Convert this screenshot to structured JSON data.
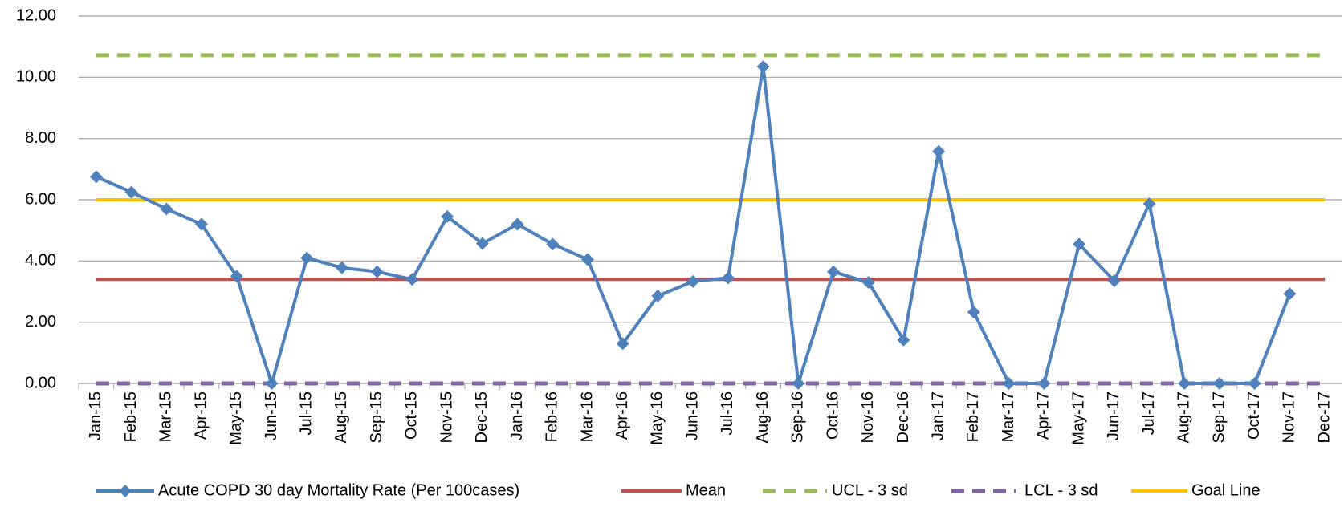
{
  "chart_data": {
    "type": "line",
    "categories": [
      "Jan-15",
      "Feb-15",
      "Mar-15",
      "Apr-15",
      "May-15",
      "Jun-15",
      "Jul-15",
      "Aug-15",
      "Sep-15",
      "Oct-15",
      "Nov-15",
      "Dec-15",
      "Jan-16",
      "Feb-16",
      "Mar-16",
      "Apr-16",
      "May-16",
      "Jun-16",
      "Jul-16",
      "Aug-16",
      "Sep-16",
      "Oct-16",
      "Nov-16",
      "Dec-16",
      "Jan-17",
      "Feb-17",
      "Mar-17",
      "Apr-17",
      "May-17",
      "Jun-17",
      "Jul-17",
      "Aug-17",
      "Sep-17",
      "Oct-17",
      "Nov-17",
      "Dec-17"
    ],
    "series": [
      {
        "name": "Acute COPD 30 day Mortality Rate (Per 100cases)",
        "color": "#4f81bd",
        "style": "solid",
        "marker": "diamond",
        "values": [
          6.75,
          6.25,
          5.7,
          5.2,
          3.5,
          0,
          4.1,
          3.78,
          3.65,
          3.4,
          5.45,
          4.57,
          5.2,
          4.55,
          4.05,
          1.3,
          2.86,
          3.33,
          3.45,
          10.35,
          0,
          3.65,
          3.3,
          1.42,
          7.58,
          2.33,
          0,
          0,
          4.55,
          3.35,
          5.87,
          0,
          0,
          0,
          2.93,
          null
        ]
      },
      {
        "name": "Mean",
        "color": "#c0504d",
        "style": "solid",
        "values": [
          3.4,
          3.4,
          3.4,
          3.4,
          3.4,
          3.4,
          3.4,
          3.4,
          3.4,
          3.4,
          3.4,
          3.4,
          3.4,
          3.4,
          3.4,
          3.4,
          3.4,
          3.4,
          3.4,
          3.4,
          3.4,
          3.4,
          3.4,
          3.4,
          3.4,
          3.4,
          3.4,
          3.4,
          3.4,
          3.4,
          3.4,
          3.4,
          3.4,
          3.4,
          3.4,
          3.4
        ]
      },
      {
        "name": "UCL - 3 sd",
        "color": "#9bbb59",
        "style": "dashed",
        "values": [
          10.72,
          10.72,
          10.72,
          10.72,
          10.72,
          10.72,
          10.72,
          10.72,
          10.72,
          10.72,
          10.72,
          10.72,
          10.72,
          10.72,
          10.72,
          10.72,
          10.72,
          10.72,
          10.72,
          10.72,
          10.72,
          10.72,
          10.72,
          10.72,
          10.72,
          10.72,
          10.72,
          10.72,
          10.72,
          10.72,
          10.72,
          10.72,
          10.72,
          10.72,
          10.72,
          10.72
        ]
      },
      {
        "name": "LCL - 3 sd",
        "color": "#8064a2",
        "style": "dashed",
        "values": [
          0,
          0,
          0,
          0,
          0,
          0,
          0,
          0,
          0,
          0,
          0,
          0,
          0,
          0,
          0,
          0,
          0,
          0,
          0,
          0,
          0,
          0,
          0,
          0,
          0,
          0,
          0,
          0,
          0,
          0,
          0,
          0,
          0,
          0,
          0,
          0
        ]
      },
      {
        "name": "Goal Line",
        "color": "#ffc000",
        "style": "solid",
        "values": [
          6,
          6,
          6,
          6,
          6,
          6,
          6,
          6,
          6,
          6,
          6,
          6,
          6,
          6,
          6,
          6,
          6,
          6,
          6,
          6,
          6,
          6,
          6,
          6,
          6,
          6,
          6,
          6,
          6,
          6,
          6,
          6,
          6,
          6,
          6,
          6
        ]
      }
    ],
    "ylim": [
      0,
      12
    ],
    "yticks": [
      {
        "value": 0,
        "label": "0.00"
      },
      {
        "value": 2,
        "label": "2.00"
      },
      {
        "value": 4,
        "label": "4.00"
      },
      {
        "value": 6,
        "label": "6.00"
      },
      {
        "value": 8,
        "label": "8.00"
      },
      {
        "value": 10,
        "label": "10.00"
      },
      {
        "value": 12,
        "label": "12.00"
      }
    ],
    "grid": true,
    "legend": "bottom"
  }
}
